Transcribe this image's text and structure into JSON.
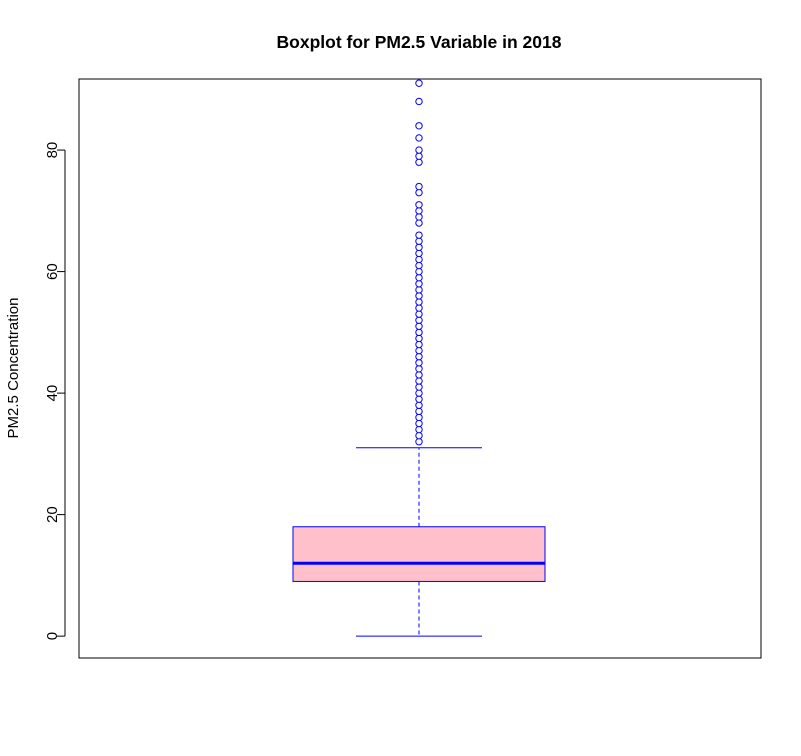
{
  "chart_data": {
    "type": "boxplot",
    "title": "Boxplot for PM2.5 Variable in 2018",
    "xlabel": "",
    "ylabel": "PM2.5 Concentration",
    "ylim": [
      -3.6,
      91.7
    ],
    "yticks": [
      0,
      20,
      40,
      60,
      80
    ],
    "grid": false,
    "legend": "none",
    "box": {
      "min": 0,
      "q1": 9,
      "median": 12,
      "q3": 18,
      "whisker_high": 31,
      "outliers": [
        32,
        33,
        34,
        35,
        36,
        37,
        38,
        39,
        40,
        41,
        42,
        43,
        44,
        45,
        46,
        47,
        48,
        49,
        50,
        51,
        52,
        53,
        54,
        55,
        56,
        57,
        58,
        59,
        60,
        61,
        62,
        63,
        64,
        65,
        66,
        68,
        69,
        70,
        71,
        73,
        74,
        78,
        79,
        80,
        82,
        84,
        88,
        91
      ]
    },
    "colors": {
      "box_fill": "#ffc0cb",
      "box_border": "#0000ff",
      "median": "#0000ff",
      "whisker": "#0000ff",
      "outlier": "#0000ff",
      "frame": "#000000",
      "text": "#000000"
    }
  }
}
